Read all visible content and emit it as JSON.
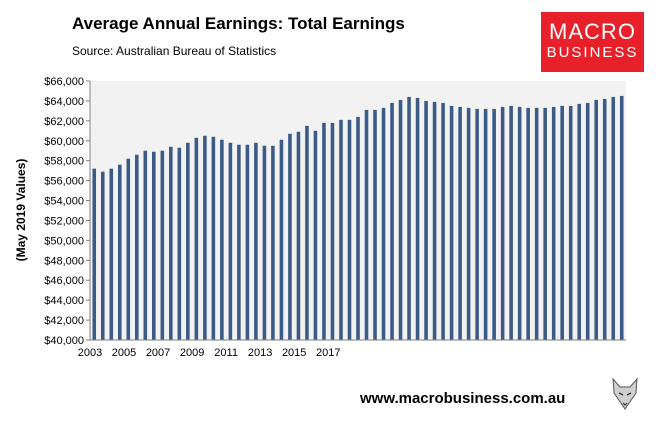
{
  "header": {
    "title": "Average Annual Earnings: Total Earnings",
    "source": "Source: Australian Bureau of Statistics"
  },
  "logo": {
    "line1": "MACRO",
    "line2": "BUSINESS",
    "color": "#e8202a"
  },
  "footer": {
    "url": "www.macrobusiness.com.au",
    "icon": "fox-icon"
  },
  "colors": {
    "bar": "#3b5b86",
    "plot_bg": "#f2f2f2"
  },
  "chart_data": {
    "type": "bar",
    "title": "Average Annual Earnings: Total Earnings",
    "ylabel": "(May 2019 Values)",
    "xlabel": "",
    "ylim": [
      40000,
      66000
    ],
    "y_ticks": [
      "$40,000",
      "$42,000",
      "$44,000",
      "$46,000",
      "$48,000",
      "$50,000",
      "$52,000",
      "$54,000",
      "$56,000",
      "$58,000",
      "$60,000",
      "$62,000",
      "$64,000",
      "$66,000"
    ],
    "x_tick_labels": [
      "2003",
      "2005",
      "2007",
      "2009",
      "2011",
      "2013",
      "2015",
      "2017"
    ],
    "grid": false,
    "frequency": "semi-annual",
    "start": "2003",
    "series": [
      {
        "values": [
          57200,
          56900,
          57200,
          57600,
          58200,
          58600,
          59000,
          58900,
          59000,
          59400,
          59300,
          59800,
          60300,
          60500,
          60400,
          60100,
          59800,
          59600,
          59600,
          59800,
          59500,
          59500,
          60100,
          60700,
          60900,
          61500,
          61000,
          61800,
          61800,
          62100,
          62100,
          62400,
          63100,
          63100,
          63300,
          63800,
          64100,
          64400,
          64300,
          64000,
          63900,
          63800,
          63500,
          63400,
          63300,
          63200,
          63200,
          63200,
          63400,
          63500,
          63400,
          63300,
          63300,
          63300,
          63400,
          63500,
          63500,
          63700,
          63800,
          64100,
          64200,
          64400,
          64500
        ]
      }
    ]
  }
}
